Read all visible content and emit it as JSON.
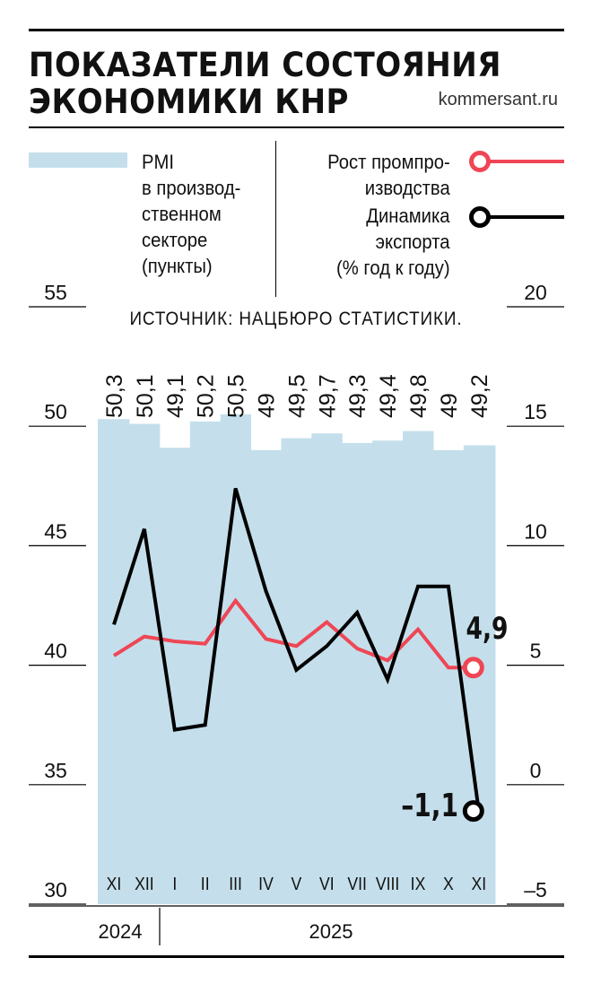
{
  "header": {
    "title_line1": "ПОКАЗАТЕЛИ СОСТОЯНИЯ",
    "title_line2": "ЭКОНОМИКИ КНР",
    "site": "kommersant.ru"
  },
  "legend": {
    "pmi_label": "PMI\nв производ-\nственном\nсекторе\n(пункты)",
    "industrial_label": "Рост промпро-\nизводства",
    "export_label": "Динамика\nэкспорта\n(% год к году)"
  },
  "source": "ИСТОЧНИК: НАЦБЮРО СТАТИСТИКИ.",
  "colors": {
    "pmi_fill": "#c4dfeb",
    "industrial_line": "#ef4655",
    "export_line": "#000000"
  },
  "chart_data": {
    "type": "bar",
    "categories": [
      "XI",
      "XII",
      "I",
      "II",
      "III",
      "IV",
      "V",
      "VI",
      "VII",
      "VIII",
      "IX",
      "X",
      "XI"
    ],
    "year_labels": [
      {
        "label": "2024",
        "from": 0,
        "to": 1
      },
      {
        "label": "2025",
        "from": 2,
        "to": 12
      }
    ],
    "left_axis": {
      "min": 30,
      "max": 55,
      "ticks": [
        55,
        50,
        45,
        40,
        35,
        30
      ]
    },
    "right_axis": {
      "min": -5,
      "max": 20,
      "ticks": [
        20,
        15,
        10,
        5,
        0,
        -5
      ]
    },
    "series": [
      {
        "name": "PMI в производственном секторе (пункты)",
        "type": "bar",
        "axis": "left",
        "values": [
          50.3,
          50.1,
          49.1,
          50.2,
          50.5,
          49,
          49.5,
          49.7,
          49.3,
          49.4,
          49.8,
          49,
          49.2
        ],
        "labels": [
          "50,3",
          "50,1",
          "49,1",
          "50,2",
          "50,5",
          "49",
          "49,5",
          "49,7",
          "49,3",
          "49,4",
          "49,8",
          "49",
          "49,2"
        ]
      },
      {
        "name": "Рост промпроизводства",
        "type": "line",
        "axis": "right",
        "values": [
          5.4,
          6.2,
          6.0,
          5.9,
          7.7,
          6.1,
          5.8,
          6.8,
          5.7,
          5.2,
          6.5,
          4.9,
          4.9
        ],
        "last_label": "4,9"
      },
      {
        "name": "Динамика экспорта",
        "type": "line",
        "axis": "right",
        "values": [
          6.7,
          10.7,
          2.3,
          2.5,
          12.4,
          8.1,
          4.8,
          5.8,
          7.2,
          4.4,
          8.3,
          8.3,
          -1.1
        ],
        "last_label": "–1,1"
      }
    ]
  }
}
